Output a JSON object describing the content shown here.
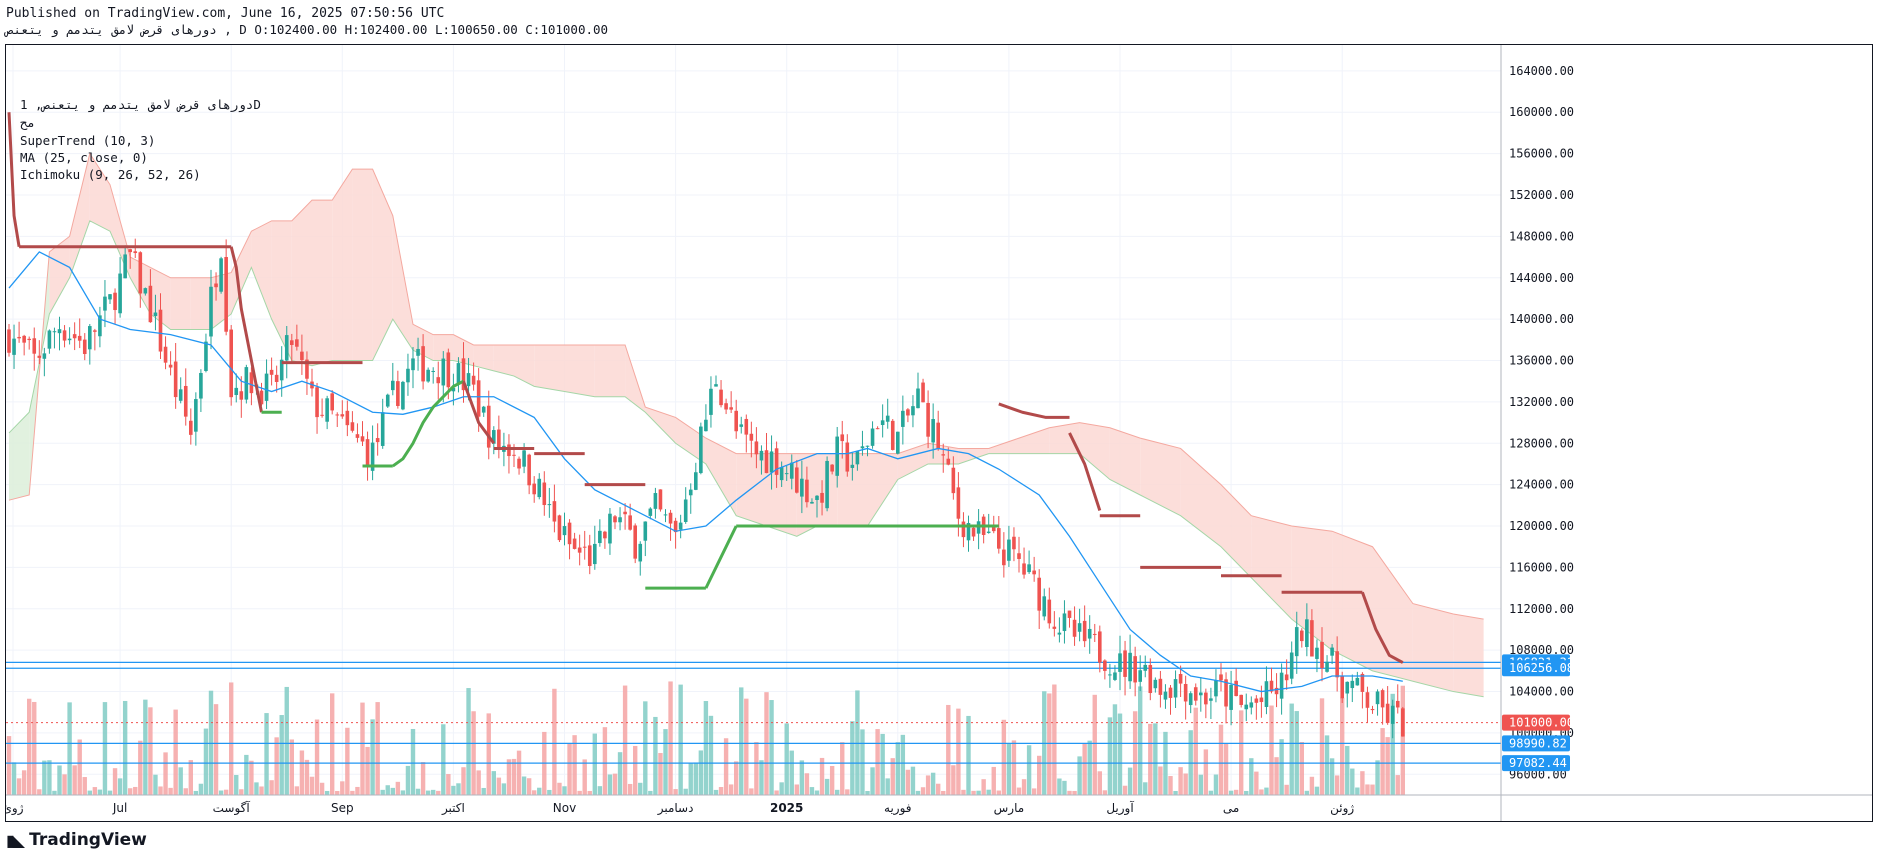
{
  "header": {
    "published": "Published on TradingView.com, June 16, 2025 07:50:56 UTC",
    "ohlc_line": "دورهای قرض لامق یتدمم و یتعنص , D O:102400.00 H:102400.00 L:100650.00 C:101000.00"
  },
  "legend": {
    "symbol": "دورهای قرض لامق یتدمم و یتعنص, 1D",
    "exchange": "مح",
    "indicator_supertrend": "SuperTrend (10, 3)",
    "indicator_ma": "MA (25, close, 0)",
    "indicator_ichimoku": "Ichimoku (9, 26, 52, 26)"
  },
  "footer": {
    "brand": "TradingView",
    "logo_icon": "tradingview-logo-icon"
  },
  "colors": {
    "up": "#26a69a",
    "down": "#ef5350",
    "up_vol": "#80cbc4",
    "down_vol": "#f5a3a3",
    "supertrend_down": "#b24a4a",
    "supertrend_up": "#4caf50",
    "ma": "#2196f3",
    "cloud_bear": "#fbd8d4",
    "cloud_bull": "#dcefd9",
    "hline": "#2196f3",
    "last_price": "#ef5350"
  },
  "chart_data": {
    "type": "candlestick",
    "timeframe": "1D",
    "y_ticks": [
      96000,
      100000,
      104000,
      108000,
      112000,
      116000,
      120000,
      124000,
      128000,
      132000,
      136000,
      140000,
      144000,
      148000,
      152000,
      156000,
      160000,
      164000
    ],
    "y_tick_labels": [
      "96000.00",
      "100000.00",
      "104000.00",
      "108000.00",
      "112000.00",
      "116000.00",
      "120000.00",
      "124000.00",
      "128000.00",
      "132000.00",
      "136000.00",
      "140000.00",
      "144000.00",
      "148000.00",
      "152000.00",
      "156000.00",
      "160000.00",
      "164000.00"
    ],
    "ylim": [
      94000,
      166500
    ],
    "x_labels": [
      "ژوئ",
      "Jul",
      "آگوست",
      "Sep",
      "اکتبر",
      "Nov",
      "دسامبر",
      "2025",
      "فوریه",
      "مارس",
      "آوریل",
      "می",
      "ژوئن"
    ],
    "x_label_index": [
      0,
      22,
      44,
      66,
      88,
      110,
      132,
      154,
      176,
      198,
      220,
      242,
      264
    ],
    "bar_count": 285,
    "last_close": 101000.0,
    "price_labels": [
      {
        "value": 106821.31,
        "text": "106821.31",
        "kind": "level"
      },
      {
        "value": 106256.08,
        "text": "106256.08",
        "kind": "level"
      },
      {
        "value": 101000.0,
        "text": "101000.00",
        "kind": "last"
      },
      {
        "value": 98990.82,
        "text": "98990.82",
        "kind": "level"
      },
      {
        "value": 97082.44,
        "text": "97082.44",
        "kind": "level"
      }
    ],
    "close_anchors": [
      [
        0,
        138500
      ],
      [
        5,
        136000
      ],
      [
        10,
        139500
      ],
      [
        15,
        137500
      ],
      [
        20,
        141500
      ],
      [
        24,
        146000
      ],
      [
        28,
        141000
      ],
      [
        32,
        134500
      ],
      [
        36,
        129000
      ],
      [
        40,
        142000
      ],
      [
        42,
        147500
      ],
      [
        44,
        133500
      ],
      [
        48,
        134000
      ],
      [
        52,
        133000
      ],
      [
        56,
        138000
      ],
      [
        60,
        132000
      ],
      [
        64,
        130500
      ],
      [
        68,
        128500
      ],
      [
        72,
        127000
      ],
      [
        76,
        132500
      ],
      [
        80,
        135500
      ],
      [
        84,
        135500
      ],
      [
        88,
        135000
      ],
      [
        92,
        133000
      ],
      [
        96,
        128000
      ],
      [
        100,
        127500
      ],
      [
        104,
        124500
      ],
      [
        108,
        120000
      ],
      [
        112,
        117500
      ],
      [
        116,
        117000
      ],
      [
        120,
        121000
      ],
      [
        124,
        118500
      ],
      [
        128,
        121500
      ],
      [
        132,
        119000
      ],
      [
        136,
        126500
      ],
      [
        140,
        134500
      ],
      [
        144,
        129000
      ],
      [
        148,
        127000
      ],
      [
        152,
        126500
      ],
      [
        156,
        124500
      ],
      [
        160,
        122500
      ],
      [
        164,
        127000
      ],
      [
        168,
        126000
      ],
      [
        172,
        130500
      ],
      [
        176,
        128500
      ],
      [
        180,
        132500
      ],
      [
        184,
        128000
      ],
      [
        188,
        121000
      ],
      [
        192,
        119000
      ],
      [
        196,
        118000
      ],
      [
        200,
        116500
      ],
      [
        204,
        113500
      ],
      [
        208,
        110500
      ],
      [
        212,
        109000
      ],
      [
        216,
        108000
      ],
      [
        220,
        106500
      ],
      [
        224,
        106500
      ],
      [
        228,
        104500
      ],
      [
        232,
        105000
      ],
      [
        236,
        103500
      ],
      [
        240,
        104000
      ],
      [
        244,
        102500
      ],
      [
        248,
        103000
      ],
      [
        252,
        104500
      ],
      [
        256,
        110000
      ],
      [
        260,
        108000
      ],
      [
        264,
        105000
      ],
      [
        268,
        103500
      ],
      [
        272,
        102000
      ],
      [
        276,
        101000
      ]
    ],
    "volume_scale": {
      "max": 100
    },
    "supertrend": [
      {
        "from": 0,
        "to": 2,
        "values": [
          160000,
          150000,
          147000
        ],
        "trend": "down"
      },
      {
        "from": 2,
        "to": 44,
        "level": 147000,
        "trend": "down"
      },
      {
        "from": 44,
        "to": 50,
        "values": [
          147000,
          145000,
          141000,
          138500,
          136000,
          133500,
          131000
        ],
        "trend": "down"
      },
      {
        "from": 50,
        "to": 54,
        "level": 131000,
        "trend": "up"
      },
      {
        "from": 54,
        "to": 70,
        "level": 135800,
        "trend": "down"
      },
      {
        "from": 70,
        "to": 76,
        "level": 125800,
        "trend": "up"
      },
      {
        "from": 76,
        "to": 90,
        "values": [
          125800,
          126500,
          128000,
          130000,
          131500,
          132500,
          133500,
          134000
        ],
        "trend": "up"
      },
      {
        "from": 90,
        "to": 96,
        "values": [
          134000,
          130000,
          128000
        ],
        "trend": "down"
      },
      {
        "from": 96,
        "to": 104,
        "level": 127500,
        "trend": "down"
      },
      {
        "from": 104,
        "to": 114,
        "level": 127000,
        "trend": "down"
      },
      {
        "from": 114,
        "to": 126,
        "level": 124000,
        "trend": "down"
      },
      {
        "from": 126,
        "to": 138,
        "level": 114000,
        "trend": "up"
      },
      {
        "from": 138,
        "to": 144,
        "values": [
          114000,
          117000,
          120000
        ],
        "trend": "up"
      },
      {
        "from": 144,
        "to": 196,
        "level": 120000,
        "trend": "up"
      },
      {
        "from": 196,
        "to": 210,
        "values": [
          131800,
          131000,
          130500,
          130500
        ],
        "trend": "down"
      },
      {
        "from": 210,
        "to": 216,
        "values": [
          129000,
          126000,
          121500
        ],
        "trend": "down"
      },
      {
        "from": 216,
        "to": 224,
        "level": 121000,
        "trend": "down"
      },
      {
        "from": 224,
        "to": 240,
        "level": 116000,
        "trend": "down"
      },
      {
        "from": 240,
        "to": 252,
        "level": 115200,
        "trend": "down"
      },
      {
        "from": 252,
        "to": 268,
        "level": 113600,
        "trend": "down"
      },
      {
        "from": 268,
        "to": 276,
        "values": [
          113600,
          110000,
          107500,
          106800
        ],
        "trend": "down"
      }
    ],
    "ma": [
      [
        0,
        143000
      ],
      [
        6,
        146500
      ],
      [
        12,
        145000
      ],
      [
        18,
        140000
      ],
      [
        24,
        139000
      ],
      [
        32,
        138500
      ],
      [
        40,
        137500
      ],
      [
        46,
        134000
      ],
      [
        52,
        133000
      ],
      [
        58,
        134000
      ],
      [
        64,
        133000
      ],
      [
        72,
        131000
      ],
      [
        78,
        130800
      ],
      [
        84,
        131500
      ],
      [
        90,
        132500
      ],
      [
        96,
        132500
      ],
      [
        104,
        130500
      ],
      [
        110,
        126500
      ],
      [
        116,
        123500
      ],
      [
        124,
        121500
      ],
      [
        132,
        119500
      ],
      [
        138,
        120000
      ],
      [
        144,
        122500
      ],
      [
        152,
        125500
      ],
      [
        160,
        127000
      ],
      [
        166,
        127000
      ],
      [
        170,
        127500
      ],
      [
        176,
        126500
      ],
      [
        184,
        127500
      ],
      [
        190,
        127000
      ],
      [
        196,
        125500
      ],
      [
        204,
        123000
      ],
      [
        210,
        119000
      ],
      [
        216,
        114500
      ],
      [
        222,
        110000
      ],
      [
        228,
        107500
      ],
      [
        234,
        105500
      ],
      [
        240,
        105000
      ],
      [
        248,
        104000
      ],
      [
        256,
        104500
      ],
      [
        262,
        105500
      ],
      [
        270,
        105500
      ],
      [
        276,
        105000
      ]
    ],
    "cloud": [
      [
        0,
        129000,
        122500
      ],
      [
        4,
        131000,
        123000
      ],
      [
        8,
        140500,
        146500
      ],
      [
        12,
        144000,
        148000
      ],
      [
        16,
        149500,
        156000
      ],
      [
        20,
        148500,
        153000
      ],
      [
        24,
        144000,
        146000
      ],
      [
        28,
        140500,
        145000
      ],
      [
        32,
        139000,
        144000
      ],
      [
        36,
        139000,
        144000
      ],
      [
        40,
        139000,
        144000
      ],
      [
        44,
        140500,
        144500
      ],
      [
        48,
        145000,
        148500
      ],
      [
        52,
        140000,
        149500
      ],
      [
        56,
        136000,
        149500
      ],
      [
        60,
        135500,
        151500
      ],
      [
        64,
        136000,
        151500
      ],
      [
        68,
        136000,
        154500
      ],
      [
        72,
        136000,
        154500
      ],
      [
        76,
        140000,
        150000
      ],
      [
        80,
        137000,
        139500
      ],
      [
        84,
        136000,
        138500
      ],
      [
        88,
        136000,
        138500
      ],
      [
        92,
        135500,
        137500
      ],
      [
        96,
        135000,
        137500
      ],
      [
        100,
        134500,
        137500
      ],
      [
        104,
        133500,
        137500
      ],
      [
        110,
        133000,
        137500
      ],
      [
        116,
        132500,
        137500
      ],
      [
        122,
        132500,
        137500
      ],
      [
        126,
        131000,
        131500
      ],
      [
        132,
        128000,
        130500
      ],
      [
        138,
        126000,
        128500
      ],
      [
        144,
        121000,
        127000
      ],
      [
        150,
        120000,
        127000
      ],
      [
        156,
        119000,
        127000
      ],
      [
        160,
        120000,
        127000
      ],
      [
        164,
        120000,
        127000
      ],
      [
        170,
        120000,
        127000
      ],
      [
        176,
        124500,
        127000
      ],
      [
        182,
        126000,
        128000
      ],
      [
        188,
        126000,
        127500
      ],
      [
        194,
        127000,
        127500
      ],
      [
        200,
        127000,
        128500
      ],
      [
        206,
        127000,
        129500
      ],
      [
        212,
        127000,
        130000
      ],
      [
        218,
        124500,
        129500
      ],
      [
        224,
        123000,
        128500
      ],
      [
        232,
        121000,
        127500
      ],
      [
        240,
        118000,
        124000
      ],
      [
        246,
        115000,
        121000
      ],
      [
        254,
        111000,
        120000
      ],
      [
        262,
        108000,
        119500
      ],
      [
        270,
        106000,
        118000
      ],
      [
        278,
        105000,
        112500
      ],
      [
        286,
        104000,
        111500
      ],
      [
        292,
        103500,
        111000
      ]
    ]
  }
}
